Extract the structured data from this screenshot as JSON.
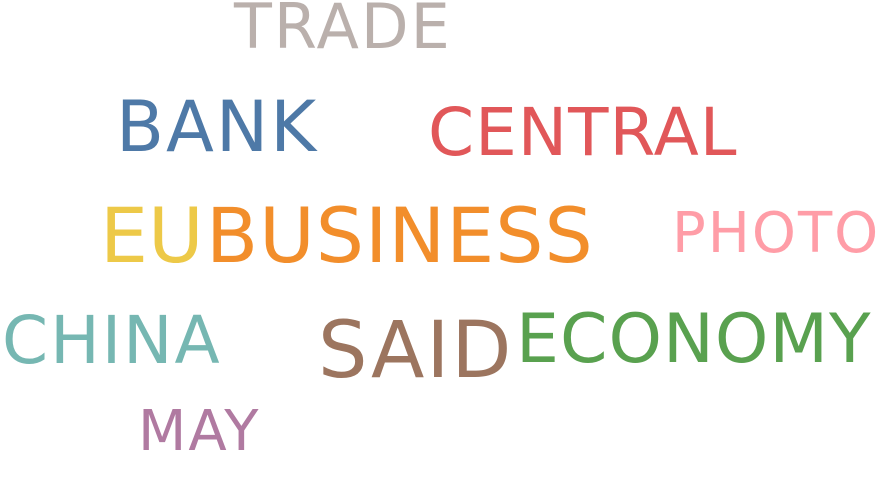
{
  "colors": {
    "trade": "#bab0ac",
    "bank": "#4e79a7",
    "central": "#e15759",
    "eu": "#edc948",
    "business": "#f28e2b",
    "photo": "#ff9da7",
    "china": "#76b7b2",
    "said": "#9c755f",
    "economy": "#59a14f",
    "may": "#b07aa1"
  },
  "words": {
    "trade": "TRADE",
    "bank": "BANK",
    "central": "CENTRAL",
    "eu": "EU",
    "business": "BUSINESS",
    "photo": "PHOTO",
    "china": "CHINA",
    "said": "SAID",
    "economy": "ECONOMY",
    "may": "MAY"
  }
}
